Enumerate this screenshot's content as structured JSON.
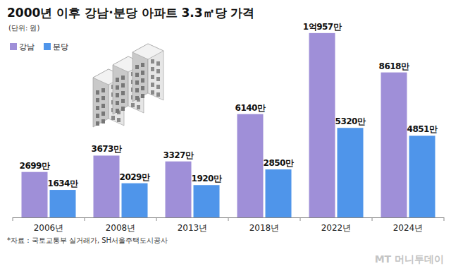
{
  "chart_data": {
    "type": "bar",
    "title": "2000년 이후 강남·분당 아파트 3.3㎡당 가격",
    "subtitle": "(단위: 원)",
    "source": "*자료 : 국토교통부 실거래가, SH서울주택도시공사",
    "brand": "MT 머니투데이",
    "categories": [
      "2006년",
      "2008년",
      "2013년",
      "2018년",
      "2022년",
      "2024년"
    ],
    "series": [
      {
        "name": "강남",
        "color": "#9f8fd8",
        "values": [
          2699,
          3673,
          3327,
          6140,
          10957,
          8618
        ],
        "value_labels": [
          "2699만",
          "3673만",
          "3327만",
          "6140만",
          "1억957만",
          "8618만"
        ]
      },
      {
        "name": "분당",
        "color": "#4f95ea",
        "values": [
          1634,
          2029,
          1920,
          2850,
          5320,
          4851
        ],
        "value_labels": [
          "1634만",
          "2029만",
          "1920만",
          "2850만",
          "5320만",
          "4851만"
        ]
      }
    ],
    "ylim": [
      0,
      12000
    ],
    "legend": "top-left",
    "data_labels": true,
    "tick_labels": "x",
    "grid": false
  }
}
